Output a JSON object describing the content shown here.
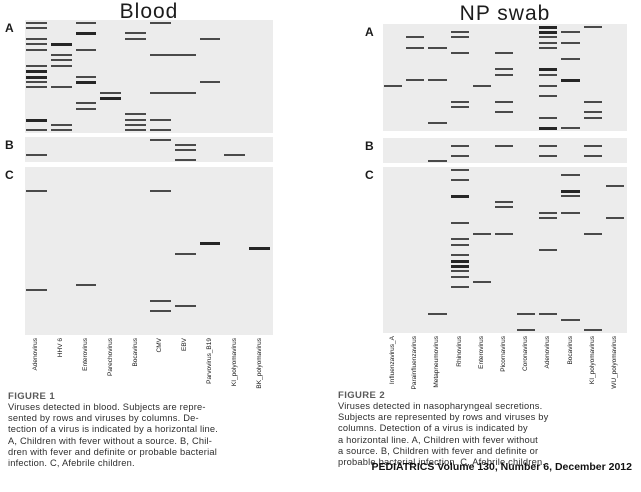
{
  "footer": "PEDIATRICS Volume 130, Number 6, December 2012",
  "colors": {
    "grid_bg": "#ececec",
    "mark": "#4a4a4a",
    "mark_bold": "#262626"
  },
  "chart_data": [
    {
      "type": "heatmap",
      "title": "Blood",
      "figure_label": "FIGURE 1",
      "caption_lines": [
        "Viruses detected in blood. Subjects are repre-",
        "sented by rows and viruses by columns. De-",
        "tection of a virus is indicated by a horizontal line.",
        "A, Children with fever without a source. B, Chil-",
        "dren with fever and definite or probable bacterial",
        "infection. C, Afebrile children."
      ],
      "columns": [
        "Adenovirus",
        "HHV 6",
        "Enterovirus",
        "Parechovirus",
        "Bocavirus",
        "CMV",
        "EBV",
        "Parvovirus_B19",
        "KI_polyomavirus",
        "BK_polyomavirus"
      ],
      "sections": [
        {
          "label": "A",
          "rows": 21,
          "marks": [
            [
              1,
              1
            ],
            [
              1,
              3
            ],
            [
              1,
              6
            ],
            [
              2,
              1
            ],
            [
              3,
              3,
              2
            ],
            [
              3,
              5
            ],
            [
              4,
              1
            ],
            [
              4,
              5
            ],
            [
              4,
              8
            ],
            [
              5,
              1
            ],
            [
              5,
              2,
              2
            ],
            [
              6,
              1
            ],
            [
              6,
              3
            ],
            [
              7,
              2
            ],
            [
              7,
              6,
              1,
              2
            ],
            [
              8,
              2
            ],
            [
              9,
              1
            ],
            [
              9,
              2
            ],
            [
              10,
              1,
              2
            ],
            [
              11,
              1,
              2
            ],
            [
              11,
              3
            ],
            [
              12,
              1
            ],
            [
              12,
              3,
              2
            ],
            [
              12,
              8
            ],
            [
              13,
              1
            ],
            [
              13,
              2
            ],
            [
              14,
              4
            ],
            [
              14,
              6,
              1,
              2
            ],
            [
              15,
              4,
              2
            ],
            [
              16,
              3
            ],
            [
              17,
              3
            ],
            [
              18,
              5
            ],
            [
              19,
              1,
              2
            ],
            [
              19,
              5
            ],
            [
              19,
              6
            ],
            [
              20,
              2
            ],
            [
              20,
              5
            ],
            [
              21,
              1
            ],
            [
              21,
              2
            ],
            [
              21,
              5
            ],
            [
              21,
              6
            ]
          ]
        },
        {
          "label": "B",
          "rows": 5,
          "marks": [
            [
              1,
              6
            ],
            [
              2,
              7
            ],
            [
              3,
              7
            ],
            [
              4,
              1
            ],
            [
              4,
              9
            ],
            [
              5,
              7
            ]
          ]
        },
        {
          "label": "C",
          "rows": 32,
          "marks": [
            [
              5,
              1
            ],
            [
              5,
              6
            ],
            [
              15,
              8,
              2
            ],
            [
              16,
              10,
              2
            ],
            [
              17,
              7
            ],
            [
              23,
              3
            ],
            [
              24,
              1
            ],
            [
              26,
              6
            ],
            [
              27,
              7
            ],
            [
              28,
              6
            ]
          ]
        }
      ]
    },
    {
      "type": "heatmap",
      "title": "NP swab",
      "figure_label": "FIGURE 2",
      "caption_lines": [
        "Viruses detected in nasopharyngeal secretions.",
        "Subjects are represented by rows and viruses by",
        "columns. Detection of a virus is indicated by",
        "a horizontal line. A, Children with fever without",
        "a source. B, Children with fever and definite or",
        "probable bacterial infection. C, Afebrile children."
      ],
      "columns": [
        "Influenzavirus_A",
        "Parainfluenzavirus",
        "Metapneumovirus",
        "Rhinovirus",
        "Enterovirus",
        "Picornavirus",
        "Coronavirus",
        "Adenovirus",
        "Bocavirus",
        "KI_polyomavirus",
        "WU_polyomavirus"
      ],
      "sections": [
        {
          "label": "A",
          "rows": 20,
          "marks": [
            [
              1,
              8,
              2
            ],
            [
              1,
              10
            ],
            [
              2,
              4
            ],
            [
              2,
              8,
              2
            ],
            [
              2,
              9
            ],
            [
              3,
              2
            ],
            [
              3,
              4
            ],
            [
              3,
              8
            ],
            [
              4,
              8
            ],
            [
              4,
              9
            ],
            [
              5,
              2
            ],
            [
              5,
              3
            ],
            [
              5,
              8
            ],
            [
              6,
              4
            ],
            [
              6,
              6
            ],
            [
              7,
              9
            ],
            [
              9,
              6
            ],
            [
              9,
              8,
              2
            ],
            [
              10,
              6
            ],
            [
              10,
              8
            ],
            [
              11,
              2
            ],
            [
              11,
              3
            ],
            [
              11,
              9,
              2
            ],
            [
              12,
              1
            ],
            [
              12,
              5
            ],
            [
              12,
              8
            ],
            [
              14,
              8
            ],
            [
              15,
              4
            ],
            [
              15,
              6
            ],
            [
              15,
              10
            ],
            [
              16,
              4
            ],
            [
              17,
              6
            ],
            [
              17,
              10
            ],
            [
              18,
              8
            ],
            [
              18,
              10
            ],
            [
              19,
              3
            ],
            [
              20,
              8,
              2
            ],
            [
              20,
              9
            ]
          ]
        },
        {
          "label": "B",
          "rows": 5,
          "marks": [
            [
              2,
              4
            ],
            [
              2,
              6
            ],
            [
              2,
              8
            ],
            [
              2,
              10
            ],
            [
              4,
              4
            ],
            [
              4,
              8
            ],
            [
              4,
              10
            ],
            [
              5,
              3
            ]
          ]
        },
        {
          "label": "C",
          "rows": 31,
          "marks": [
            [
              1,
              4
            ],
            [
              2,
              9
            ],
            [
              3,
              4
            ],
            [
              4,
              11
            ],
            [
              5,
              9,
              2
            ],
            [
              6,
              4,
              2
            ],
            [
              6,
              9
            ],
            [
              7,
              6
            ],
            [
              8,
              6
            ],
            [
              9,
              8
            ],
            [
              9,
              9
            ],
            [
              10,
              8
            ],
            [
              10,
              11
            ],
            [
              11,
              4
            ],
            [
              13,
              5
            ],
            [
              13,
              6
            ],
            [
              13,
              10
            ],
            [
              14,
              4
            ],
            [
              15,
              4
            ],
            [
              16,
              8
            ],
            [
              17,
              4
            ],
            [
              18,
              4,
              2
            ],
            [
              19,
              4,
              2
            ],
            [
              20,
              4
            ],
            [
              21,
              4
            ],
            [
              22,
              5
            ],
            [
              23,
              4
            ],
            [
              28,
              3
            ],
            [
              28,
              7
            ],
            [
              28,
              8
            ],
            [
              29,
              9
            ],
            [
              31,
              7
            ],
            [
              31,
              10
            ]
          ]
        }
      ]
    }
  ]
}
